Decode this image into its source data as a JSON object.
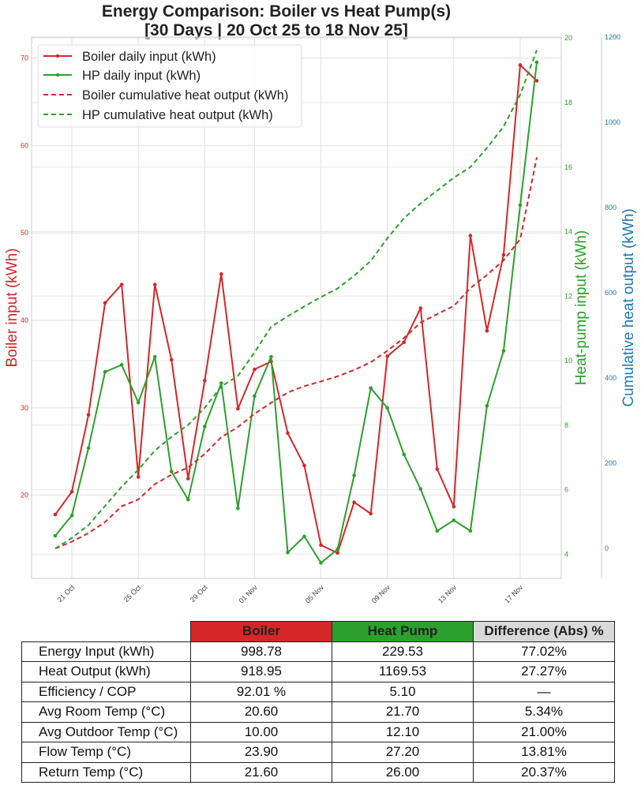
{
  "chart_data": {
    "type": "line",
    "title": "Energy Comparison: Boiler vs Heat Pump(s)",
    "subtitle": "[30 Days | 20 Oct 25 to 18 Nov 25]",
    "x": [
      "20 Oct",
      "21 Oct",
      "22 Oct",
      "23 Oct",
      "24 Oct",
      "25 Oct",
      "26 Oct",
      "27 Oct",
      "28 Oct",
      "29 Oct",
      "30 Oct",
      "31 Oct",
      "01 Nov",
      "02 Nov",
      "03 Nov",
      "04 Nov",
      "05 Nov",
      "06 Nov",
      "07 Nov",
      "08 Nov",
      "09 Nov",
      "10 Nov",
      "11 Nov",
      "12 Nov",
      "13 Nov",
      "14 Nov",
      "15 Nov",
      "16 Nov",
      "17 Nov",
      "18 Nov"
    ],
    "xtick_labels": [
      "21 Oct",
      "25 Oct",
      "29 Oct",
      "01 Nov",
      "05 Nov",
      "09 Nov",
      "13 Nov",
      "17 Nov"
    ],
    "xtick_index": [
      1,
      5,
      9,
      12,
      16,
      20,
      24,
      28
    ],
    "xlabel": "",
    "axes": {
      "left": {
        "label": "Boiler input (kWh)",
        "color": "#d62728",
        "ticks": [
          20,
          30,
          40,
          50,
          60,
          70
        ],
        "ylim": [
          10.5,
          72.4
        ]
      },
      "right1": {
        "label": "Heat-pump input (kWh)",
        "color": "#2ca02c",
        "ticks": [
          4,
          6,
          8,
          10,
          12,
          14,
          16,
          18,
          20
        ],
        "ylim": [
          3.25,
          20.03
        ]
      },
      "right2": {
        "label": "Cumulative heat output (kWh)",
        "color": "#1f77b4",
        "ticks": [
          0,
          200,
          400,
          600,
          800,
          1000,
          1200
        ],
        "ylim": [
          -70,
          1200
        ]
      }
    },
    "series": [
      {
        "name": "Boiler daily input (kWh)",
        "axis": "left",
        "style": "solid-marker",
        "color": "#d62728",
        "values": [
          17.8,
          20.4,
          29.2,
          42.0,
          44.1,
          22.1,
          44.1,
          35.5,
          21.9,
          33.1,
          45.3,
          29.9,
          34.4,
          35.3,
          27.1,
          23.4,
          14.3,
          13.4,
          19.2,
          17.9,
          35.9,
          37.5,
          41.4,
          23.0,
          18.7,
          49.7,
          38.8,
          47.5,
          69.2,
          67.4
        ]
      },
      {
        "name": "HP daily input (kWh)",
        "axis": "right1",
        "style": "solid-marker",
        "color": "#2ca02c",
        "values": [
          4.57,
          5.2,
          7.29,
          9.65,
          9.87,
          8.7,
          10.12,
          6.56,
          5.69,
          7.96,
          9.3,
          5.42,
          8.9,
          10.12,
          4.05,
          4.55,
          3.73,
          4.15,
          6.44,
          9.15,
          8.53,
          7.09,
          6.02,
          4.72,
          5.05,
          4.72,
          8.6,
          10.3,
          14.82,
          19.25
        ]
      },
      {
        "name": "Boiler cumulative heat output (kWh)",
        "axis": "right2",
        "style": "dashed",
        "color": "#d62728",
        "values": [
          0,
          16,
          36,
          62,
          99,
          115,
          151,
          173,
          190,
          222,
          261,
          285,
          316,
          342,
          366,
          381,
          392,
          404,
          419,
          437,
          464,
          494,
          530,
          550,
          569,
          611,
          642,
          676,
          726,
          918
        ]
      },
      {
        "name": "HP cumulative heat output (kWh)",
        "axis": "right2",
        "style": "dashed",
        "color": "#2ca02c",
        "values": [
          0,
          25,
          55,
          100,
          145,
          185,
          230,
          262,
          290,
          330,
          380,
          405,
          460,
          520,
          545,
          568,
          590,
          610,
          640,
          675,
          728,
          775,
          810,
          840,
          870,
          895,
          940,
          990,
          1065,
          1169.53
        ]
      }
    ],
    "legend": {
      "position": "upper left",
      "entries": [
        "Boiler daily input (kWh)",
        "HP daily input (kWh)",
        "Boiler cumulative heat output (kWh)",
        "HP cumulative heat output (kWh)"
      ]
    },
    "grid": true
  },
  "table": {
    "headers": [
      "Boiler",
      "Heat Pump",
      "Difference (Abs) %"
    ],
    "header_colors": [
      "#d62728",
      "#2ca02c",
      "#d9d9d9"
    ],
    "rows": [
      {
        "label": "Energy Input (kWh)",
        "boiler": "998.78",
        "hp": "229.53",
        "diff": "77.02%"
      },
      {
        "label": "Heat Output (kWh)",
        "boiler": "918.95",
        "hp": "1169.53",
        "diff": "27.27%"
      },
      {
        "label": "Efficiency / COP",
        "boiler": "92.01 %",
        "hp": "5.10",
        "diff": "—"
      },
      {
        "label": "Avg Room Temp (°C)",
        "boiler": "20.60",
        "hp": "21.70",
        "diff": "5.34%"
      },
      {
        "label": "Avg Outdoor Temp (°C)",
        "boiler": "10.00",
        "hp": "12.10",
        "diff": "21.00%"
      },
      {
        "label": "Flow Temp (°C)",
        "boiler": "23.90",
        "hp": "27.20",
        "diff": "13.81%"
      },
      {
        "label": "Return Temp (°C)",
        "boiler": "21.60",
        "hp": "26.00",
        "diff": "20.37%"
      }
    ]
  }
}
